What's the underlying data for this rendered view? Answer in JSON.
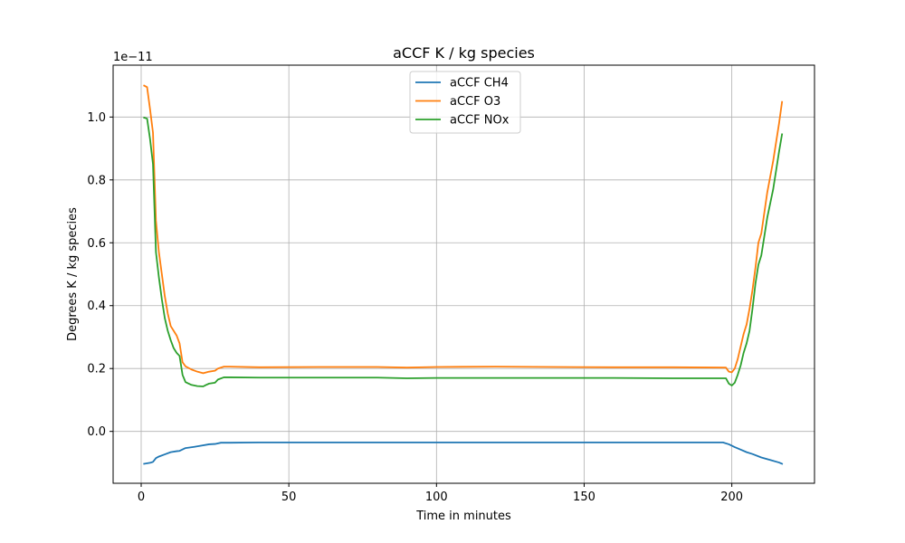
{
  "chart_data": {
    "type": "line",
    "title": "aCCF K / kg species",
    "xlabel": "Time in minutes",
    "ylabel": "Degrees K / kg species",
    "y_scale_note": "1e−11",
    "xlim": [
      -9.5,
      228
    ],
    "ylim": [
      -0.165,
      1.165
    ],
    "x_ticks": [
      0,
      50,
      100,
      150,
      200
    ],
    "x_tick_labels": [
      "0",
      "50",
      "100",
      "150",
      "200"
    ],
    "y_ticks": [
      0.0,
      0.2,
      0.4,
      0.6,
      0.8,
      1.0
    ],
    "y_tick_labels": [
      "0.0",
      "0.2",
      "0.4",
      "0.6",
      "0.8",
      "1.0"
    ],
    "grid": true,
    "legend_position": "upper center",
    "series": [
      {
        "name": "aCCF CH4",
        "color": "#1f77b4",
        "x": [
          1,
          3,
          4,
          5,
          6,
          8,
          10,
          12,
          13,
          15,
          18,
          20,
          23,
          25,
          27,
          30,
          40,
          60,
          80,
          100,
          120,
          140,
          160,
          180,
          197,
          199,
          201,
          203,
          205,
          207,
          210,
          213,
          216,
          217
        ],
        "y": [
          -0.103,
          -0.1,
          -0.097,
          -0.085,
          -0.08,
          -0.073,
          -0.066,
          -0.063,
          -0.062,
          -0.053,
          -0.049,
          -0.046,
          -0.041,
          -0.04,
          -0.036,
          -0.036,
          -0.035,
          -0.035,
          -0.035,
          -0.035,
          -0.035,
          -0.035,
          -0.035,
          -0.035,
          -0.035,
          -0.041,
          -0.05,
          -0.058,
          -0.066,
          -0.072,
          -0.083,
          -0.091,
          -0.099,
          -0.103
        ]
      },
      {
        "name": "aCCF O3",
        "color": "#ff7f0e",
        "x": [
          1,
          2,
          3,
          4,
          5,
          6,
          7,
          8,
          9,
          10,
          11,
          12,
          13,
          14,
          15,
          17,
          19,
          21,
          23,
          25,
          26,
          28,
          30,
          40,
          60,
          80,
          90,
          100,
          120,
          140,
          160,
          180,
          198,
          199,
          200,
          201,
          202,
          203,
          204,
          205,
          206,
          207,
          208,
          209,
          210,
          212,
          214,
          216,
          217
        ],
        "y": [
          1.1,
          1.095,
          1.025,
          0.95,
          0.67,
          0.57,
          0.5,
          0.43,
          0.375,
          0.335,
          0.32,
          0.305,
          0.28,
          0.22,
          0.207,
          0.197,
          0.19,
          0.185,
          0.19,
          0.193,
          0.2,
          0.206,
          0.206,
          0.204,
          0.205,
          0.205,
          0.203,
          0.205,
          0.206,
          0.205,
          0.204,
          0.204,
          0.203,
          0.19,
          0.188,
          0.2,
          0.23,
          0.27,
          0.31,
          0.34,
          0.39,
          0.45,
          0.52,
          0.6,
          0.63,
          0.76,
          0.86,
          0.98,
          1.048
        ]
      },
      {
        "name": "aCCF NOx",
        "color": "#2ca02c",
        "x": [
          1,
          2,
          3,
          4,
          5,
          6,
          7,
          8,
          9,
          10,
          11,
          12,
          13,
          14,
          15,
          17,
          19,
          21,
          22,
          23,
          25,
          26,
          28,
          30,
          40,
          60,
          80,
          90,
          100,
          120,
          140,
          160,
          180,
          198,
          199,
          200,
          201,
          202,
          203,
          204,
          205,
          206,
          207,
          208,
          209,
          210,
          212,
          214,
          216,
          217
        ],
        "y": [
          0.998,
          0.995,
          0.93,
          0.85,
          0.57,
          0.49,
          0.42,
          0.36,
          0.32,
          0.29,
          0.265,
          0.25,
          0.24,
          0.18,
          0.157,
          0.148,
          0.144,
          0.143,
          0.148,
          0.152,
          0.155,
          0.165,
          0.172,
          0.172,
          0.171,
          0.171,
          0.171,
          0.169,
          0.17,
          0.17,
          0.17,
          0.17,
          0.169,
          0.169,
          0.152,
          0.146,
          0.155,
          0.18,
          0.21,
          0.25,
          0.28,
          0.32,
          0.39,
          0.47,
          0.53,
          0.56,
          0.68,
          0.77,
          0.89,
          0.945
        ]
      }
    ]
  }
}
